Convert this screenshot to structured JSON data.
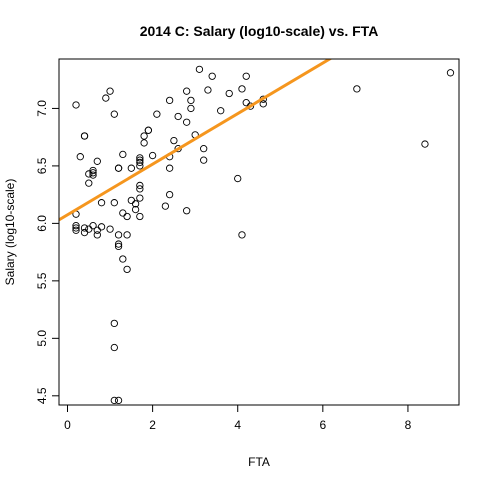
{
  "chart_data": {
    "type": "scatter",
    "title": "2014 C: Salary (log10-scale) vs. FTA",
    "xlabel": "FTA",
    "ylabel": "Salary (log10-scale)",
    "xlim": [
      -0.2,
      9.2
    ],
    "ylim": [
      4.42,
      7.43
    ],
    "x_ticks": [
      0,
      2,
      4,
      6,
      8
    ],
    "y_ticks": [
      4.5,
      5.0,
      5.5,
      6.0,
      6.5,
      7.0
    ],
    "grid": false,
    "legend": "none",
    "fit_line": {
      "intercept": 6.075,
      "slope": 0.22,
      "color": "#f5961e"
    },
    "points": [
      [
        0.2,
        7.03
      ],
      [
        0.3,
        6.58
      ],
      [
        0.4,
        6.76
      ],
      [
        0.4,
        6.76
      ],
      [
        0.5,
        6.43
      ],
      [
        0.5,
        6.35
      ],
      [
        0.6,
        6.46
      ],
      [
        0.6,
        6.44
      ],
      [
        0.6,
        6.42
      ],
      [
        0.7,
        6.54
      ],
      [
        0.2,
        6.08
      ],
      [
        0.2,
        5.98
      ],
      [
        0.2,
        5.96
      ],
      [
        0.2,
        5.94
      ],
      [
        0.4,
        5.96
      ],
      [
        0.4,
        5.92
      ],
      [
        0.5,
        5.95
      ],
      [
        0.6,
        5.98
      ],
      [
        0.7,
        5.94
      ],
      [
        0.7,
        5.9
      ],
      [
        0.8,
        5.97
      ],
      [
        0.8,
        6.18
      ],
      [
        0.9,
        7.09
      ],
      [
        1.0,
        7.15
      ],
      [
        1.0,
        5.95
      ],
      [
        1.1,
        6.95
      ],
      [
        1.1,
        6.18
      ],
      [
        1.2,
        6.48
      ],
      [
        1.2,
        6.48
      ],
      [
        1.2,
        5.9
      ],
      [
        1.2,
        5.82
      ],
      [
        1.2,
        5.8
      ],
      [
        1.3,
        6.6
      ],
      [
        1.3,
        6.09
      ],
      [
        1.3,
        5.69
      ],
      [
        1.4,
        6.06
      ],
      [
        1.4,
        5.9
      ],
      [
        1.4,
        5.6
      ],
      [
        1.5,
        6.48
      ],
      [
        1.5,
        6.2
      ],
      [
        1.6,
        6.17
      ],
      [
        1.6,
        6.12
      ],
      [
        1.7,
        6.55
      ],
      [
        1.7,
        6.57
      ],
      [
        1.7,
        6.53
      ],
      [
        1.7,
        6.5
      ],
      [
        1.7,
        6.33
      ],
      [
        1.7,
        6.3
      ],
      [
        1.7,
        6.22
      ],
      [
        1.7,
        6.06
      ],
      [
        1.8,
        6.76
      ],
      [
        1.8,
        6.7
      ],
      [
        1.9,
        6.81
      ],
      [
        1.9,
        6.81
      ],
      [
        2.0,
        6.59
      ],
      [
        2.1,
        6.95
      ],
      [
        2.3,
        6.15
      ],
      [
        2.4,
        7.07
      ],
      [
        2.4,
        6.58
      ],
      [
        2.4,
        6.48
      ],
      [
        2.4,
        6.25
      ],
      [
        2.5,
        6.72
      ],
      [
        2.6,
        6.93
      ],
      [
        2.6,
        6.65
      ],
      [
        2.8,
        7.15
      ],
      [
        2.8,
        6.88
      ],
      [
        2.8,
        6.11
      ],
      [
        2.9,
        7.07
      ],
      [
        2.9,
        7.0
      ],
      [
        3.0,
        6.77
      ],
      [
        3.1,
        7.34
      ],
      [
        3.2,
        6.65
      ],
      [
        3.2,
        6.55
      ],
      [
        3.3,
        7.16
      ],
      [
        3.4,
        7.28
      ],
      [
        3.6,
        6.98
      ],
      [
        3.8,
        7.13
      ],
      [
        4.0,
        6.39
      ],
      [
        4.1,
        7.17
      ],
      [
        4.1,
        5.9
      ],
      [
        4.2,
        7.28
      ],
      [
        4.2,
        7.05
      ],
      [
        4.3,
        7.02
      ],
      [
        4.6,
        7.08
      ],
      [
        4.6,
        7.04
      ],
      [
        6.8,
        7.17
      ],
      [
        8.4,
        6.69
      ],
      [
        9.0,
        7.31
      ],
      [
        1.1,
        5.13
      ],
      [
        1.1,
        4.92
      ],
      [
        1.1,
        4.46
      ],
      [
        1.2,
        4.46
      ]
    ]
  }
}
